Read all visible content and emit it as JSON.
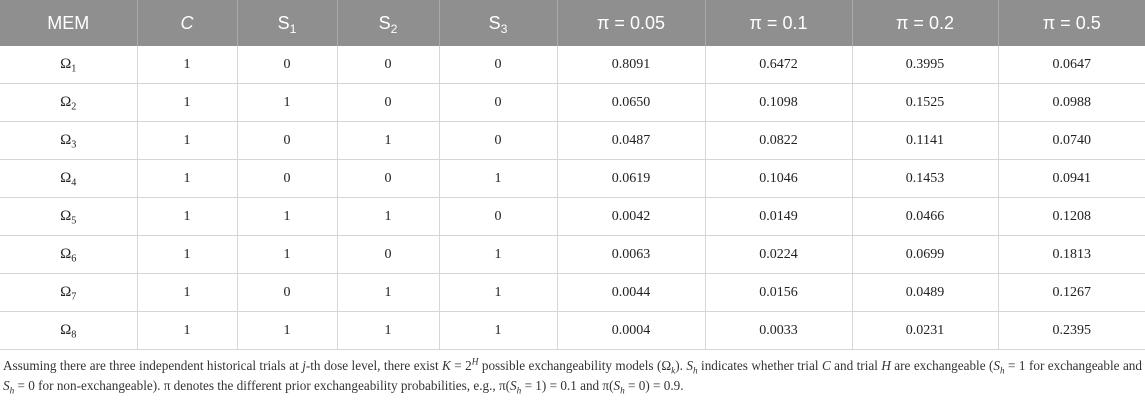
{
  "table": {
    "header": {
      "mem": "MEM",
      "c": "C",
      "s_prefix": "S",
      "s1_sub": "1",
      "s2_sub": "2",
      "s3_sub": "3",
      "p1": "π = 0.05",
      "p2": "π = 0.1",
      "p3": "π = 0.2",
      "p4": "π = 0.5"
    },
    "rows": [
      {
        "omega": "Ω",
        "k": "1",
        "c": "1",
        "s1": "0",
        "s2": "0",
        "s3": "0",
        "p1": "0.8091",
        "p2": "0.6472",
        "p3": "0.3995",
        "p4": "0.0647"
      },
      {
        "omega": "Ω",
        "k": "2",
        "c": "1",
        "s1": "1",
        "s2": "0",
        "s3": "0",
        "p1": "0.0650",
        "p2": "0.1098",
        "p3": "0.1525",
        "p4": "0.0988"
      },
      {
        "omega": "Ω",
        "k": "3",
        "c": "1",
        "s1": "0",
        "s2": "1",
        "s3": "0",
        "p1": "0.0487",
        "p2": "0.0822",
        "p3": "0.1141",
        "p4": "0.0740"
      },
      {
        "omega": "Ω",
        "k": "4",
        "c": "1",
        "s1": "0",
        "s2": "0",
        "s3": "1",
        "p1": "0.0619",
        "p2": "0.1046",
        "p3": "0.1453",
        "p4": "0.0941"
      },
      {
        "omega": "Ω",
        "k": "5",
        "c": "1",
        "s1": "1",
        "s2": "1",
        "s3": "0",
        "p1": "0.0042",
        "p2": "0.0149",
        "p3": "0.0466",
        "p4": "0.1208"
      },
      {
        "omega": "Ω",
        "k": "6",
        "c": "1",
        "s1": "1",
        "s2": "0",
        "s3": "1",
        "p1": "0.0063",
        "p2": "0.0224",
        "p3": "0.0699",
        "p4": "0.1813"
      },
      {
        "omega": "Ω",
        "k": "7",
        "c": "1",
        "s1": "0",
        "s2": "1",
        "s3": "1",
        "p1": "0.0044",
        "p2": "0.0156",
        "p3": "0.0489",
        "p4": "0.1267"
      },
      {
        "omega": "Ω",
        "k": "8",
        "c": "1",
        "s1": "1",
        "s2": "1",
        "s3": "1",
        "p1": "0.0004",
        "p2": "0.0033",
        "p3": "0.0231",
        "p4": "0.2395"
      }
    ]
  },
  "footnote": {
    "t1": "Assuming there are three independent historical trials at ",
    "j": "j",
    "t2": "-th dose level, there exist ",
    "K": "K",
    "t3": " = 2",
    "H_sup": "H",
    "t4": " possible exchangeability models (Ω",
    "k_sub": "k",
    "t5": "). ",
    "S": "S",
    "h_sub": "h",
    "t6": " indicates whether trial ",
    "C": "C",
    "t7": " and trial ",
    "H": "H",
    "t8": " are exchangeable (",
    "t9": " = 1 for exchangeable and ",
    "t10": " = 0 for non-exchangeable). π denotes the different prior exchangeability probabilities, e.g., π(",
    "t11": " = 1) = 0.1 and π(",
    "t12": " = 0) = 0.9."
  }
}
